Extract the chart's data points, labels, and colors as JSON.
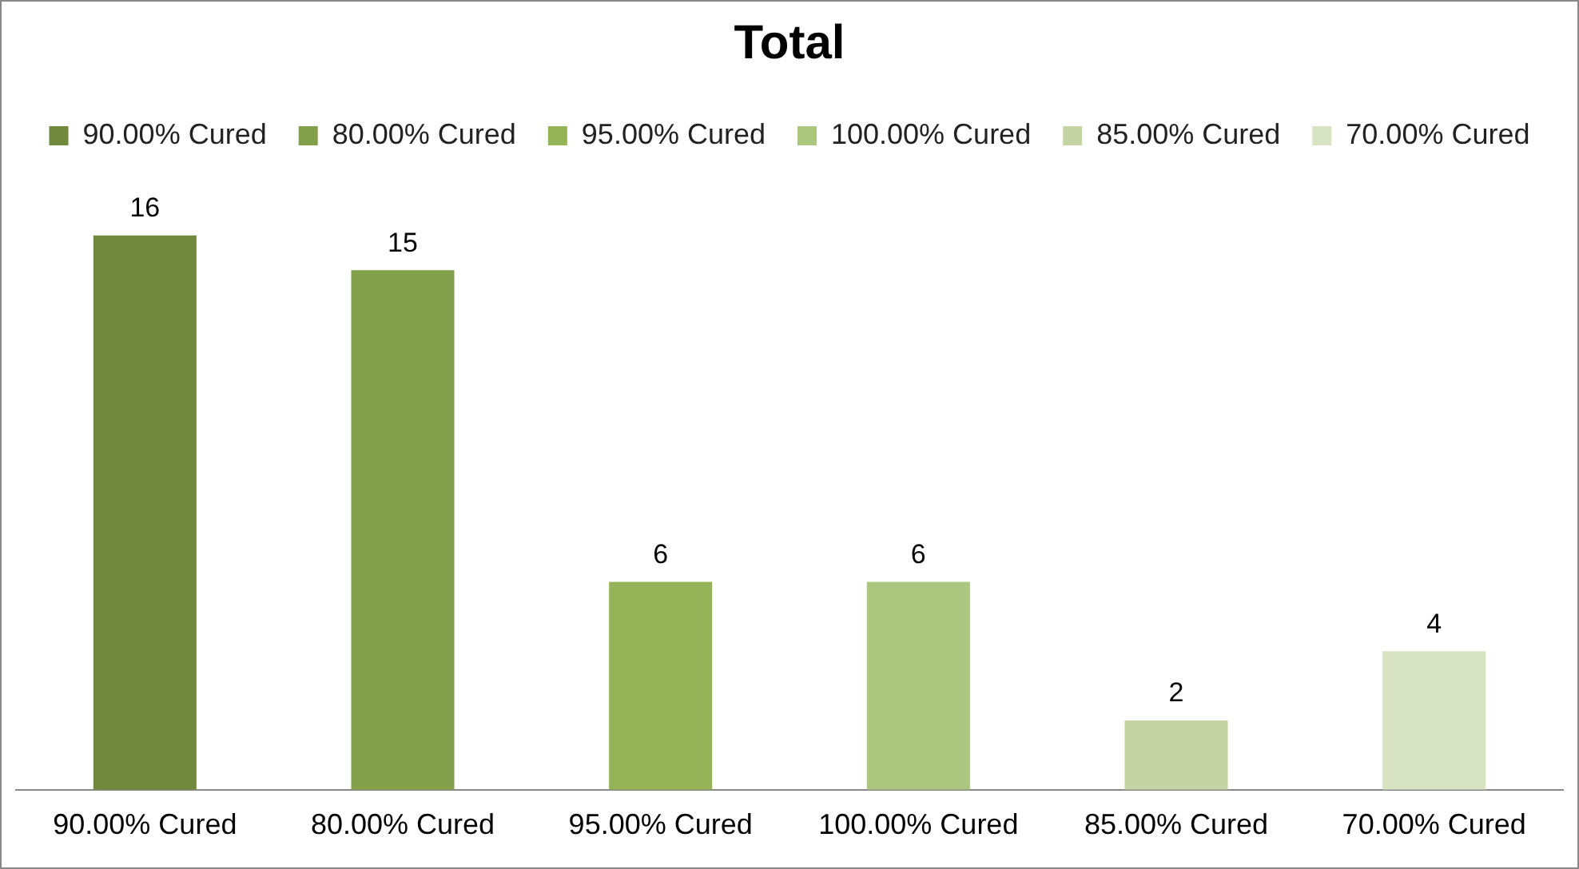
{
  "chart_data": {
    "type": "bar",
    "title": "Total",
    "categories": [
      "90.00% Cured",
      "80.00% Cured",
      "95.00% Cured",
      "100.00% Cured",
      "85.00% Cured",
      "70.00% Cured"
    ],
    "series": [
      {
        "name": "90.00% Cured",
        "color": "#71893d",
        "values": [
          16,
          null,
          null,
          null,
          null,
          null
        ]
      },
      {
        "name": "80.00% Cured",
        "color": "#83a04b",
        "values": [
          null,
          15,
          null,
          null,
          null,
          null
        ]
      },
      {
        "name": "95.00% Cured",
        "color": "#95b457",
        "values": [
          null,
          null,
          6,
          null,
          null,
          null
        ]
      },
      {
        "name": "100.00% Cured",
        "color": "#abc67f",
        "values": [
          null,
          null,
          null,
          6,
          null,
          null
        ]
      },
      {
        "name": "85.00% Cured",
        "color": "#c4d4a3",
        "values": [
          null,
          null,
          null,
          null,
          2,
          null
        ]
      },
      {
        "name": "70.00% Cured",
        "color": "#d8e3c4",
        "values": [
          null,
          null,
          null,
          null,
          null,
          4
        ]
      }
    ],
    "data_labels": true,
    "legend": "top",
    "grid": false
  }
}
